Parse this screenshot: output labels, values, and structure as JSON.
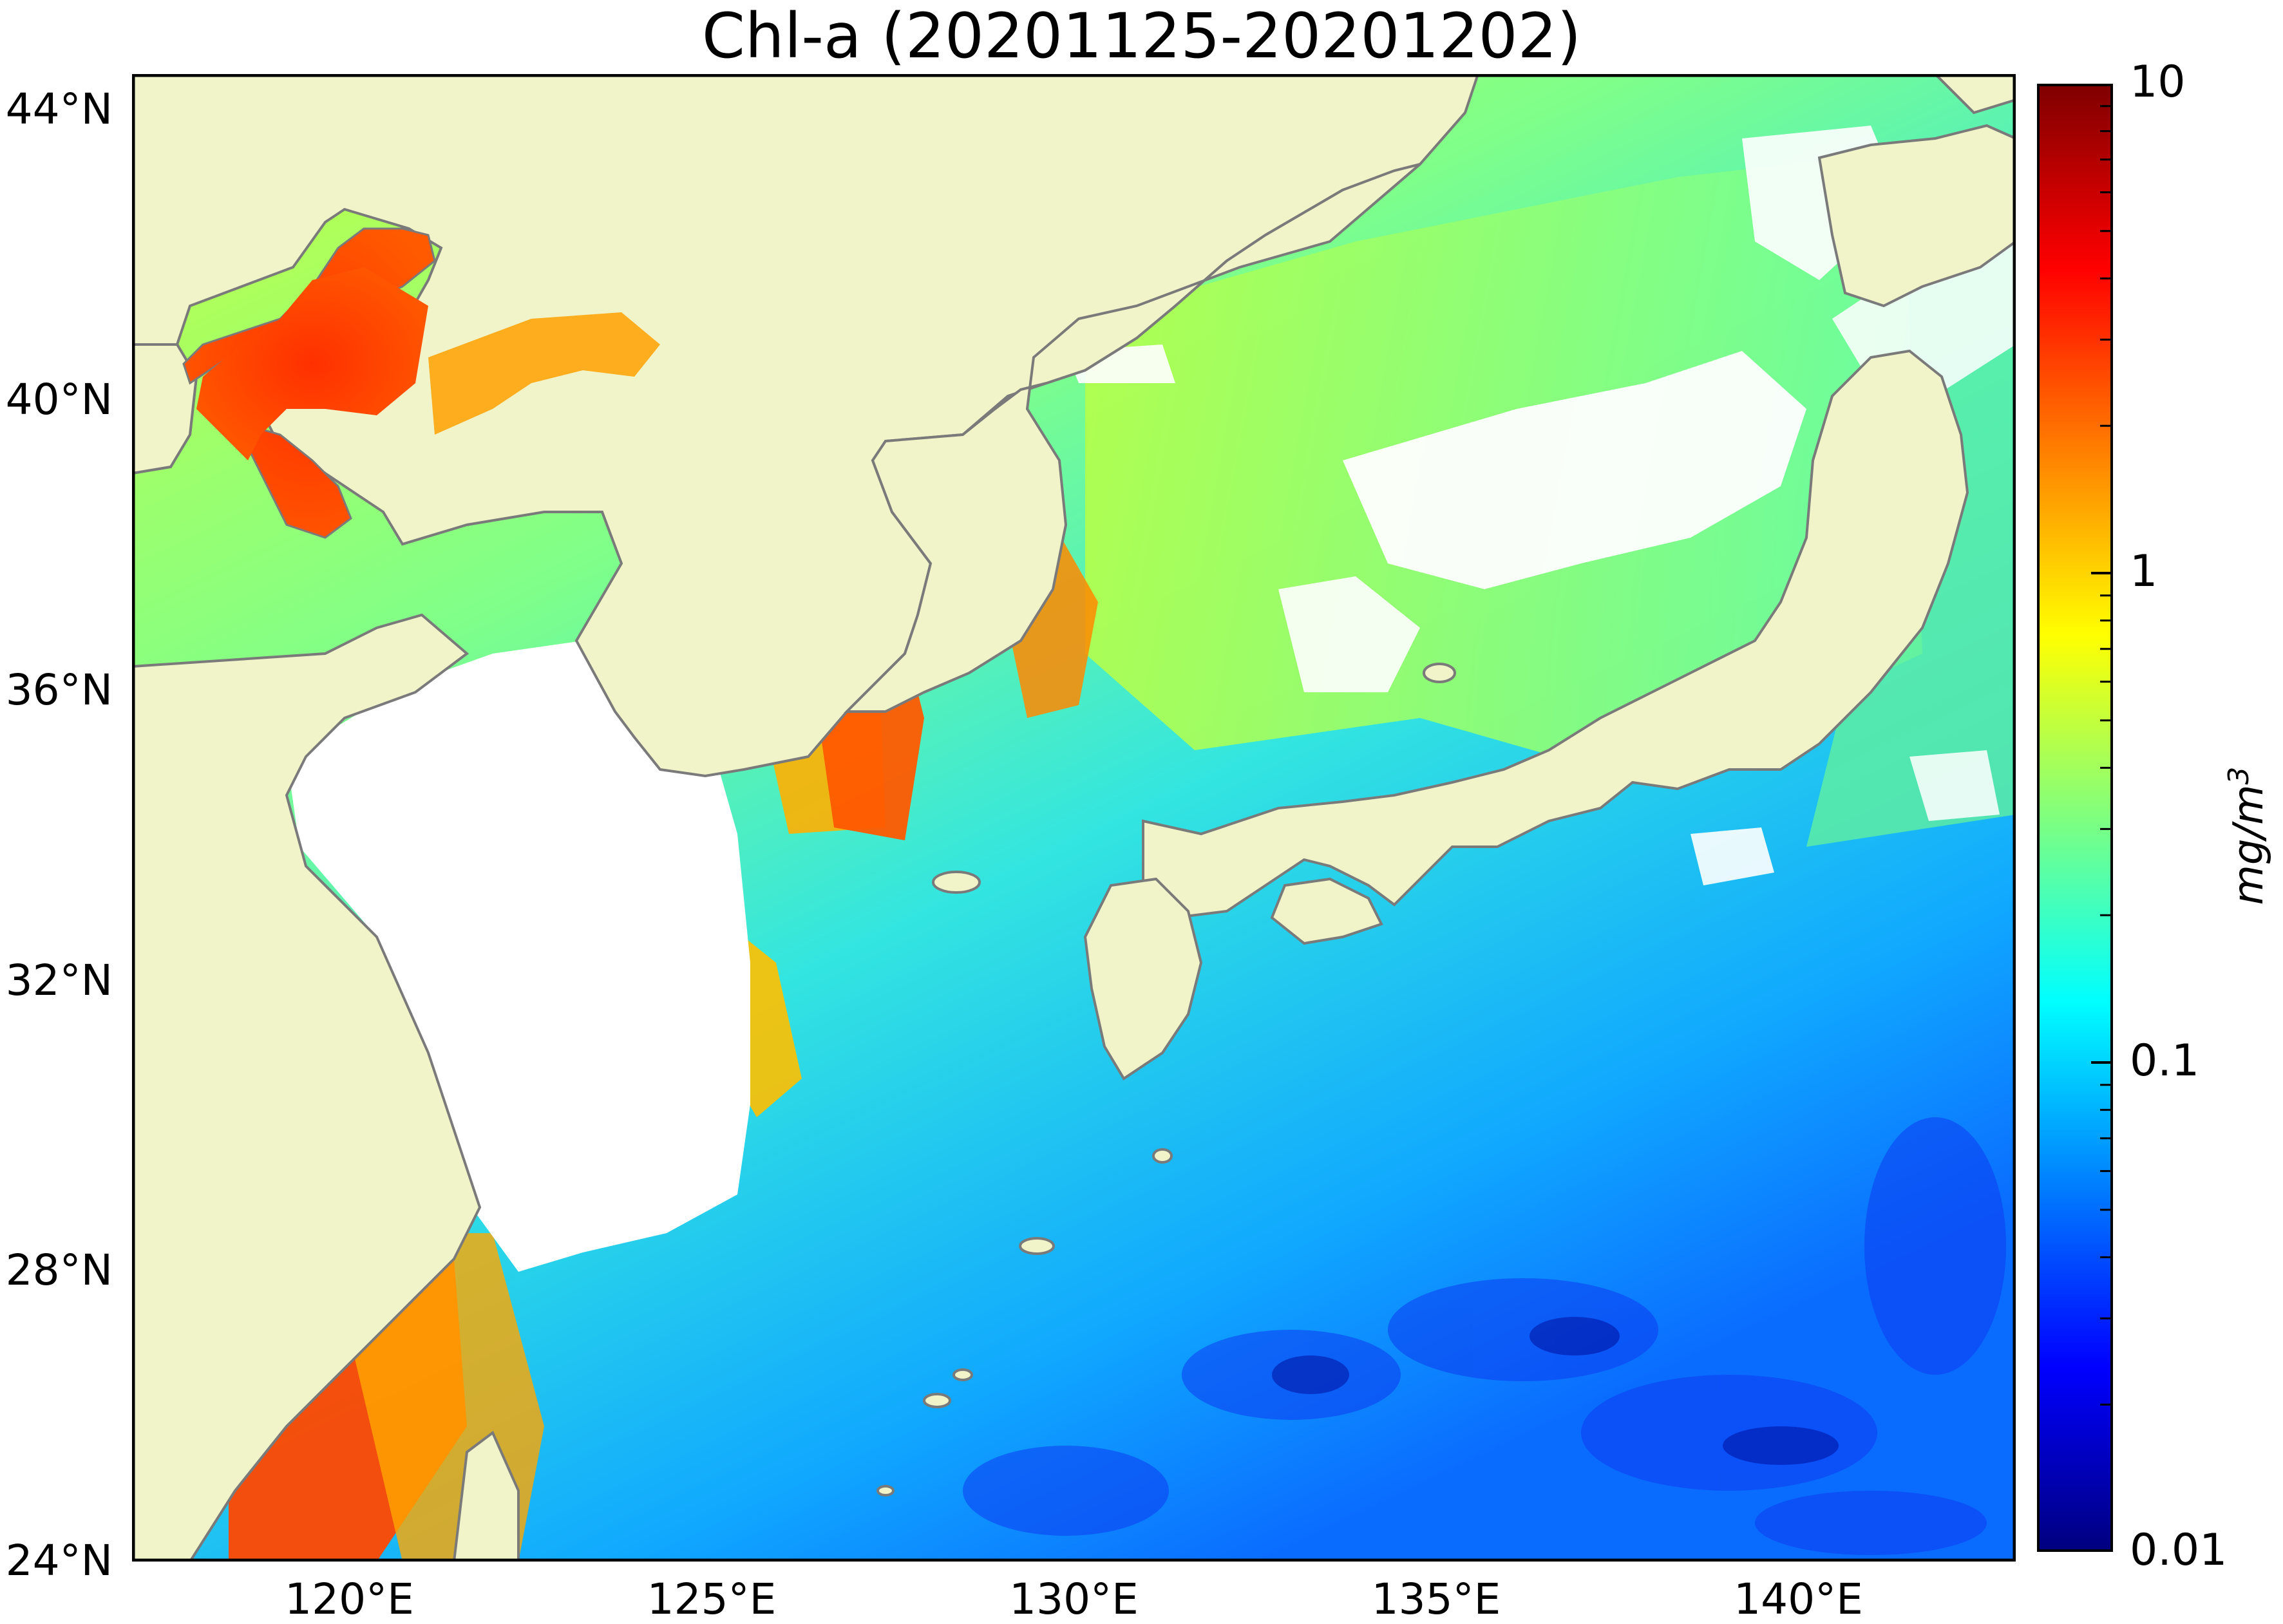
{
  "title": "Chl-a (20201125-20201202)",
  "colorbar": {
    "unit_base": "mg/m",
    "unit_exp": "3",
    "scale": "log",
    "range": [
      0.01,
      10
    ],
    "ticks": [
      {
        "value": 10,
        "label": "10"
      },
      {
        "value": 1,
        "label": "1"
      },
      {
        "value": 0.1,
        "label": "0.1"
      },
      {
        "value": 0.01,
        "label": "0.01"
      }
    ],
    "colormap": "jet",
    "colors": [
      "#00007f",
      "#0000ff",
      "#007fff",
      "#00ffff",
      "#7fff7f",
      "#ffff00",
      "#ff7f00",
      "#ff0000",
      "#7f0000"
    ]
  },
  "axes": {
    "lat_range": [
      24,
      44.5
    ],
    "lon_range": [
      117,
      143
    ],
    "lat_ticks": [
      {
        "value": 44,
        "label": "44°N"
      },
      {
        "value": 40,
        "label": "40°N"
      },
      {
        "value": 36,
        "label": "36°N"
      },
      {
        "value": 32,
        "label": "32°N"
      },
      {
        "value": 28,
        "label": "28°N"
      },
      {
        "value": 24,
        "label": "24°N"
      }
    ],
    "lon_ticks": [
      {
        "value": 120,
        "label": "120°E"
      },
      {
        "value": 125,
        "label": "125°E"
      },
      {
        "value": 130,
        "label": "130°E"
      },
      {
        "value": 135,
        "label": "135°E"
      },
      {
        "value": 140,
        "label": "140°E"
      }
    ]
  },
  "colors": {
    "land": "#f1f3c8",
    "coastline": "#7a7a7a",
    "no_data": "#ffffff"
  }
}
